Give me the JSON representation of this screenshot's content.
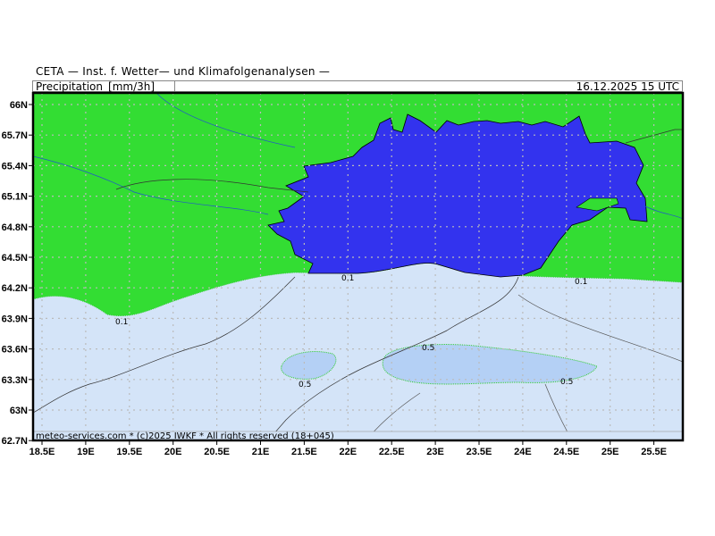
{
  "header": {
    "title": "CETA — Inst. f. Wetter— und Klimafolgenanalysen —"
  },
  "subheader": {
    "parameter": "Precipitation_[mm/3h]",
    "valid_time": "16.12.2025 15 UTC"
  },
  "map": {
    "lat_ticks": [
      "66N",
      "65.7N",
      "65.4N",
      "65.1N",
      "64.8N",
      "64.5N",
      "64.2N",
      "63.9N",
      "63.6N",
      "63.3N",
      "63N",
      "62.7N"
    ],
    "lon_ticks": [
      "18.5E",
      "19E",
      "19.5E",
      "20E",
      "20.5E",
      "21E",
      "21.5E",
      "22E",
      "22.5E",
      "23E",
      "23.5E",
      "24E",
      "24.5E",
      "25E",
      "25.5E"
    ],
    "contour_labels": [
      "0.1",
      "0.1",
      "0.1",
      "0.5",
      "0.5",
      "0.5"
    ],
    "footer": "meteo-services.com * (c)2025 IWKF * All rights reserved (18+045)",
    "colors": {
      "land_no_precip": "#33dd33",
      "sea": "#3333ee",
      "precip_0_1": "#d4e4f8",
      "precip_0_5": "#b4d0f5",
      "grid": "#bbbbbb"
    }
  }
}
